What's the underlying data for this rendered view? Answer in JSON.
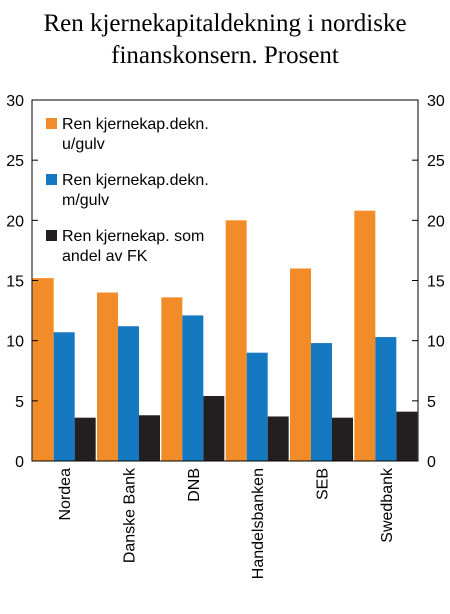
{
  "chart_data": {
    "type": "bar",
    "title_lines": [
      "Ren kjernekapitaldekning i nordiske",
      "finanskonsern. Prosent"
    ],
    "categories": [
      "Nordea",
      "Danske Bank",
      "DNB",
      "Handelsbanken",
      "SEB",
      "Swedbank"
    ],
    "series": [
      {
        "name_lines": [
          "Ren kjernekap.dekn.",
          "u/gulv"
        ],
        "color": "#f28c28",
        "values": [
          15.2,
          14.0,
          13.6,
          20.0,
          16.0,
          20.8
        ]
      },
      {
        "name_lines": [
          "Ren kjernekap.dekn.",
          "m/gulv"
        ],
        "color": "#1479c1",
        "values": [
          10.7,
          11.2,
          12.1,
          9.0,
          9.8,
          10.3
        ]
      },
      {
        "name_lines": [
          "Ren kjernekap. som",
          "andel av FK"
        ],
        "color": "#231f20",
        "values": [
          3.6,
          3.8,
          5.4,
          3.7,
          3.6,
          4.1
        ]
      }
    ],
    "ylim": [
      0,
      30
    ],
    "yticks": [
      "0",
      "5",
      "10",
      "15",
      "20",
      "25",
      "30"
    ],
    "legend_position": "top-left",
    "grid": false
  }
}
